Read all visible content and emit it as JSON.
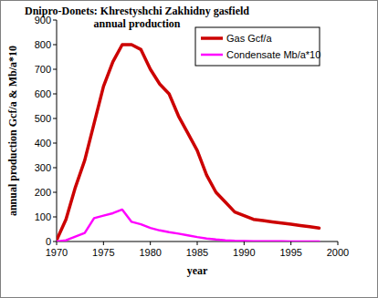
{
  "chart_data": {
    "type": "line",
    "title": "Dnipro-Donets: Khrestyshchi Zakhidny gasfield",
    "subtitle": "annual production",
    "x_label": "year",
    "y_label": "annual production Gcf/a & Mb/a*10",
    "x": [
      1970,
      1971,
      1972,
      1973,
      1974,
      1975,
      1976,
      1977,
      1978,
      1979,
      1980,
      1981,
      1982,
      1983,
      1984,
      1985,
      1986,
      1987,
      1988,
      1989,
      1990,
      1991,
      1992,
      1993,
      1994,
      1995,
      1996,
      1997,
      1998
    ],
    "series": [
      {
        "name": "Gas Gcf/a",
        "color": "#cc0000",
        "values": [
          5,
          90,
          220,
          330,
          480,
          630,
          730,
          800,
          800,
          780,
          700,
          640,
          600,
          510,
          440,
          370,
          270,
          200,
          160,
          120,
          105,
          90,
          85,
          80,
          75,
          70,
          65,
          60,
          55
        ]
      },
      {
        "name": "Condensate Mb/a*10",
        "color": "#ff00ff",
        "values": [
          0,
          5,
          20,
          35,
          95,
          105,
          115,
          130,
          80,
          70,
          55,
          45,
          38,
          32,
          25,
          18,
          12,
          8,
          5,
          3,
          2,
          1,
          1,
          1,
          1,
          0,
          0,
          0,
          0
        ]
      }
    ],
    "xlim": [
      1970,
      2000
    ],
    "xticks": [
      1970,
      1975,
      1980,
      1985,
      1990,
      1995,
      2000
    ],
    "ylim": [
      0,
      900
    ],
    "yticks": [
      0,
      100,
      200,
      300,
      400,
      500,
      600,
      700,
      800,
      900
    ],
    "grid": false,
    "legend": "top-right"
  }
}
